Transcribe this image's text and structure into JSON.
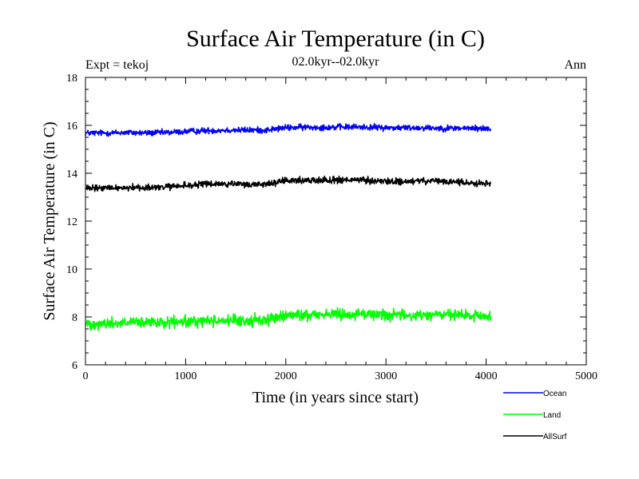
{
  "chart_data": {
    "type": "line",
    "title": "Surface Air Temperature (in C)",
    "subtitle": "02.0kyr--02.0kyr",
    "left_annotation": "Expt = tekoj",
    "right_annotation": "Ann",
    "xlabel": "Time (in years since start)",
    "ylabel": "Surface Air Temperature (in C)",
    "xlim": [
      0,
      5000
    ],
    "ylim": [
      6,
      18
    ],
    "xticks": [
      0,
      1000,
      2000,
      3000,
      4000,
      5000
    ],
    "xtick_labels": [
      "0",
      "1000",
      "2000",
      "3000",
      "4000",
      "5000"
    ],
    "yticks": [
      6,
      8,
      10,
      12,
      14,
      16,
      18
    ],
    "ytick_labels": [
      "6",
      "8",
      "10",
      "12",
      "14",
      "16",
      "18"
    ],
    "grid": false,
    "legend_position": "bottom-right, below plot",
    "series": [
      {
        "name": "Ocean",
        "color": "#0000ff",
        "noise_amplitude": 0.12,
        "x": [
          0,
          200,
          400,
          600,
          800,
          1000,
          1200,
          1400,
          1600,
          1800,
          2000,
          2200,
          2400,
          2600,
          2800,
          3000,
          3200,
          3400,
          3600,
          3800,
          4050
        ],
        "values": [
          15.68,
          15.68,
          15.7,
          15.68,
          15.7,
          15.74,
          15.78,
          15.8,
          15.8,
          15.8,
          15.9,
          15.92,
          15.92,
          15.93,
          15.93,
          15.9,
          15.9,
          15.9,
          15.88,
          15.88,
          15.86
        ]
      },
      {
        "name": "Land",
        "color": "#00ff00",
        "noise_amplitude": 0.22,
        "x": [
          0,
          200,
          400,
          600,
          800,
          1000,
          1200,
          1400,
          1600,
          1800,
          2000,
          2200,
          2400,
          2600,
          2800,
          3000,
          3200,
          3400,
          3600,
          3800,
          4050
        ],
        "values": [
          7.72,
          7.72,
          7.76,
          7.75,
          7.76,
          7.78,
          7.85,
          7.85,
          7.82,
          7.9,
          8.05,
          8.08,
          8.12,
          8.12,
          8.12,
          8.1,
          8.05,
          8.08,
          8.1,
          8.05,
          8.02
        ]
      },
      {
        "name": "AllSurf",
        "color": "#000000",
        "noise_amplitude": 0.13,
        "x": [
          0,
          200,
          400,
          600,
          800,
          1000,
          1200,
          1400,
          1600,
          1800,
          2000,
          2200,
          2400,
          2600,
          2800,
          3000,
          3200,
          3400,
          3600,
          3800,
          4050
        ],
        "values": [
          13.35,
          13.38,
          13.4,
          13.4,
          13.42,
          13.48,
          13.55,
          13.55,
          13.52,
          13.55,
          13.68,
          13.7,
          13.72,
          13.72,
          13.7,
          13.65,
          13.65,
          13.68,
          13.65,
          13.6,
          13.58
        ]
      }
    ]
  }
}
